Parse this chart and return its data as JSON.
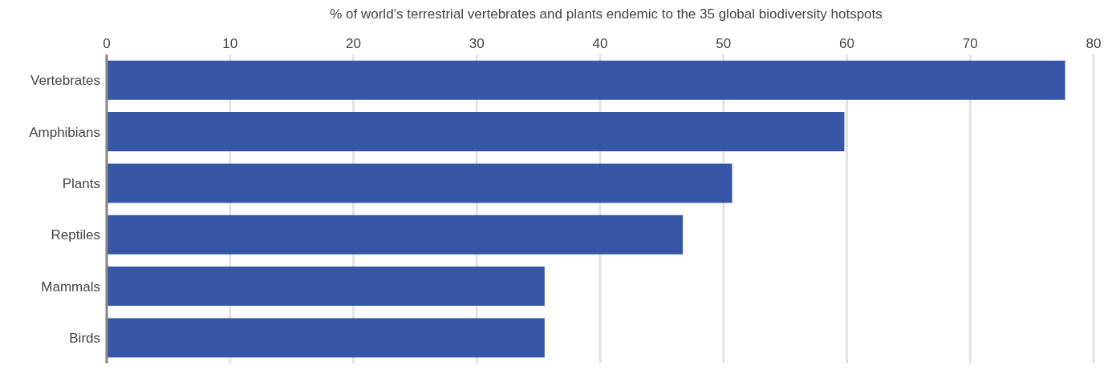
{
  "chart_data": {
    "type": "bar",
    "orientation": "horizontal",
    "title": "% of world’s terrestrial vertebrates and plants endemic to the 35 global biodiversity hotspots",
    "categories": [
      "Vertebrates",
      "Amphibians",
      "Plants",
      "Reptiles",
      "Mammals",
      "Birds"
    ],
    "values": [
      77.7,
      59.8,
      50.7,
      46.7,
      35.5,
      35.5
    ],
    "color": "#3656a6",
    "xlim": [
      0,
      80
    ],
    "xticks": [
      0,
      10,
      20,
      30,
      40,
      50,
      60,
      70,
      80
    ],
    "grid": "x"
  }
}
